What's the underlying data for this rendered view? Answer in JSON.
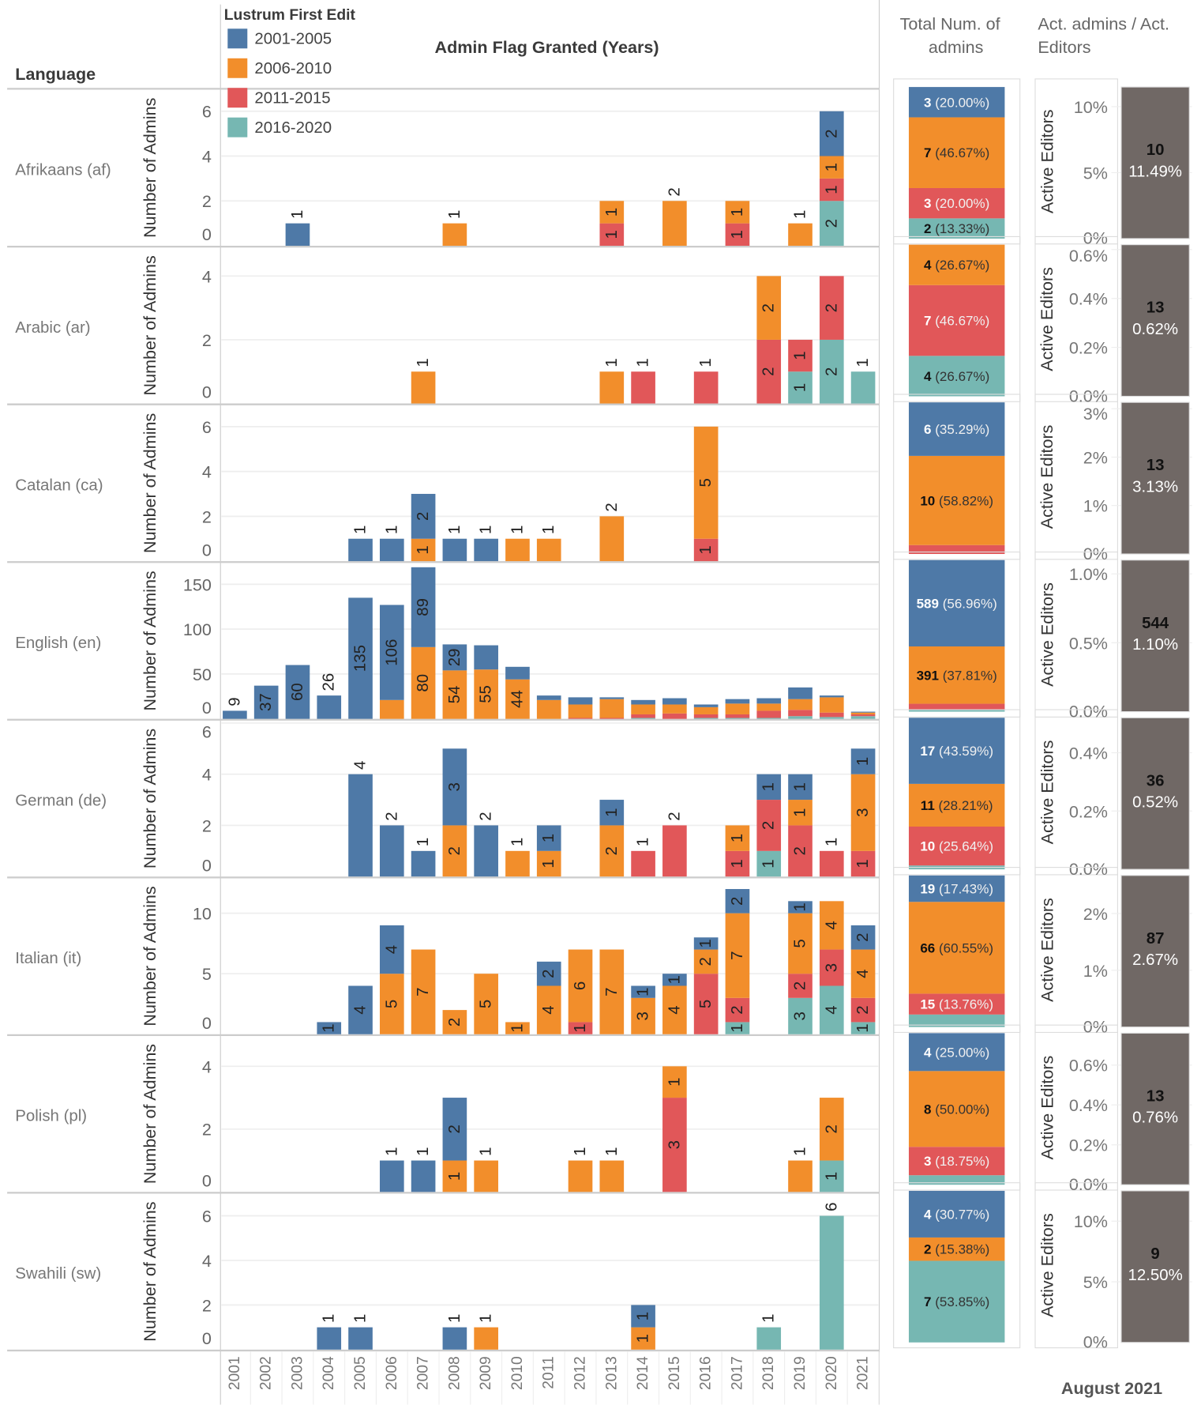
{
  "header": {
    "language_label": "Language",
    "legend_title": "Lustrum First Edit",
    "chart_title": "Admin Flag Granted (Years)",
    "total_title_1": "Total Num. of",
    "total_title_2": "admins",
    "ratio_title_1": "Act. admins / Act.",
    "ratio_title_2": "Editors",
    "footer": "August 2021"
  },
  "colors": {
    "blue": "#4e79a7",
    "orange": "#f28e2b",
    "red": "#e15759",
    "teal": "#76b7b2",
    "ratio_bar": "#706865"
  },
  "chart_data": {
    "type": "bar",
    "stacked": true,
    "title": "Admin Flag Granted (Years)",
    "ylabel": "Number of Admins",
    "ratio_axis_label": "Active Editors",
    "legend": {
      "title": "Lustrum First Edit",
      "placement": "top-left",
      "entries": [
        "2001-2005",
        "2006-2010",
        "2011-2015",
        "2016-2020"
      ]
    },
    "categories": [
      "2001",
      "2002",
      "2003",
      "2004",
      "2005",
      "2006",
      "2007",
      "2008",
      "2009",
      "2010",
      "2011",
      "2012",
      "2013",
      "2014",
      "2015",
      "2016",
      "2017",
      "2018",
      "2019",
      "2020",
      "2021"
    ],
    "series_order": "values per year are [2001-2005, 2006-2010, 2011-2015, 2016-2020]",
    "panels": [
      {
        "language": "Afrikaans (af)",
        "ylim": [
          0,
          6.96
        ],
        "yticks": [
          0,
          2,
          4,
          6
        ],
        "single_label": "above",
        "bars": {
          "2003": [
            1,
            0,
            0,
            0
          ],
          "2008": [
            0,
            1,
            0,
            0
          ],
          "2013": [
            0,
            1,
            1,
            0
          ],
          "2015": [
            0,
            2,
            0,
            0
          ],
          "2017": [
            0,
            1,
            1,
            0
          ],
          "2019": [
            0,
            1,
            0,
            0
          ],
          "2020": [
            2,
            1,
            1,
            2
          ]
        },
        "totals": {
          "counts": [
            3,
            7,
            3,
            2
          ],
          "labels": [
            "(20.00%)",
            "(46.67%)",
            "(20.00%)",
            "(13.33%)"
          ]
        },
        "ratio": {
          "admins": "10",
          "pct_label": "11.49%",
          "pct": 11.49,
          "ticks": [
            [
              0,
              "0%"
            ],
            [
              5,
              "5%"
            ],
            [
              10,
              "10%"
            ]
          ]
        }
      },
      {
        "language": "Arabic (ar)",
        "ylim": [
          0,
          4.9
        ],
        "yticks": [
          0,
          2,
          4
        ],
        "single_label": "above",
        "bars": {
          "2007": [
            0,
            1,
            0,
            0
          ],
          "2013": [
            0,
            1,
            0,
            0
          ],
          "2014": [
            0,
            0,
            1,
            0
          ],
          "2016": [
            0,
            0,
            1,
            0
          ],
          "2018": [
            0,
            2,
            2,
            0
          ],
          "2019": [
            0,
            0,
            1,
            1
          ],
          "2020": [
            0,
            0,
            2,
            2
          ],
          "2021": [
            0,
            0,
            0,
            1
          ]
        },
        "totals": {
          "counts": [
            0,
            4,
            7,
            4
          ],
          "labels": [
            null,
            "(26.67%)",
            "(46.67%)",
            "(26.67%)"
          ]
        },
        "ratio": {
          "admins": "13",
          "pct_label": "0.62%",
          "pct": 0.62,
          "ticks": [
            [
              0,
              "0.0%"
            ],
            [
              0.2,
              "0.2%"
            ],
            [
              0.4,
              "0.4%"
            ],
            [
              0.6,
              "0.6%"
            ]
          ]
        }
      },
      {
        "language": "Catalan (ca)",
        "ylim": [
          0,
          6.96
        ],
        "yticks": [
          0,
          2,
          4,
          6
        ],
        "single_label": "above",
        "bars": {
          "2005": [
            1,
            0,
            0,
            0
          ],
          "2006": [
            1,
            0,
            0,
            0
          ],
          "2007": [
            2,
            1,
            0,
            0
          ],
          "2008": [
            1,
            0,
            0,
            0
          ],
          "2009": [
            1,
            0,
            0,
            0
          ],
          "2010": [
            0,
            1,
            0,
            0
          ],
          "2011": [
            0,
            1,
            0,
            0
          ],
          "2013": [
            0,
            2,
            0,
            0
          ],
          "2016": [
            0,
            5,
            1,
            0
          ]
        },
        "totals": {
          "counts": [
            6,
            10,
            1,
            0
          ],
          "labels": [
            "(35.29%)",
            "(58.82%)",
            null,
            null
          ]
        },
        "ratio": {
          "admins": "13",
          "pct_label": "3.13%",
          "pct": 3.13,
          "ticks": [
            [
              0,
              "0%"
            ],
            [
              1,
              "1%"
            ],
            [
              2,
              "2%"
            ],
            [
              3,
              "3%"
            ]
          ]
        }
      },
      {
        "language": "English (en)",
        "ylim": [
          0,
          174
        ],
        "yticks": [
          0,
          50,
          100,
          150
        ],
        "single_label": "auto",
        "labels_until": 2010,
        "hidden_labels": [
          [
            2006,
            1
          ],
          [
            2009,
            0
          ],
          [
            2010,
            0
          ]
        ],
        "bars": {
          "2001": [
            9,
            0,
            0,
            0
          ],
          "2002": [
            37,
            0,
            0,
            0
          ],
          "2003": [
            60,
            0,
            0,
            0
          ],
          "2004": [
            26,
            0,
            0,
            0
          ],
          "2005": [
            135,
            0,
            0,
            0
          ],
          "2006": [
            106,
            21,
            0,
            0
          ],
          "2007": [
            89,
            80,
            0,
            0
          ],
          "2008": [
            29,
            54,
            0,
            0
          ],
          "2009": [
            27,
            55,
            0,
            0
          ],
          "2010": [
            14,
            44,
            0,
            0
          ],
          "2011": [
            5,
            21,
            0,
            0
          ],
          "2012": [
            8,
            15,
            1,
            0
          ],
          "2013": [
            2,
            21,
            1,
            0
          ],
          "2014": [
            5,
            11,
            4,
            1
          ],
          "2015": [
            7,
            10,
            6,
            0
          ],
          "2016": [
            3,
            8,
            4,
            1
          ],
          "2017": [
            5,
            12,
            4,
            1
          ],
          "2018": [
            6,
            8,
            8,
            1
          ],
          "2019": [
            13,
            12,
            7,
            3
          ],
          "2020": [
            2,
            17,
            5,
            2
          ],
          "2021": [
            1,
            2,
            2,
            3
          ]
        },
        "totals": {
          "counts": [
            589,
            391,
            42,
            12
          ],
          "labels": [
            "(56.96%)",
            "(37.81%)",
            null,
            null
          ]
        },
        "ratio": {
          "admins": "544",
          "pct_label": "1.10%",
          "pct": 1.1,
          "ticks": [
            [
              0,
              "0.0%"
            ],
            [
              0.5,
              "0.5%"
            ],
            [
              1.0,
              "1.0%"
            ]
          ]
        }
      },
      {
        "language": "German (de)",
        "ylim": [
          0,
          6.1
        ],
        "yticks": [
          0,
          2,
          4,
          6
        ],
        "single_label": "above",
        "bars": {
          "2005": [
            4,
            0,
            0,
            0
          ],
          "2006": [
            2,
            0,
            0,
            0
          ],
          "2007": [
            1,
            0,
            0,
            0
          ],
          "2008": [
            3,
            2,
            0,
            0
          ],
          "2009": [
            2,
            0,
            0,
            0
          ],
          "2010": [
            0,
            1,
            0,
            0
          ],
          "2011": [
            1,
            1,
            0,
            0
          ],
          "2013": [
            1,
            2,
            0,
            0
          ],
          "2014": [
            0,
            0,
            1,
            0
          ],
          "2015": [
            0,
            0,
            2,
            0
          ],
          "2017": [
            0,
            1,
            1,
            0
          ],
          "2018": [
            1,
            0,
            2,
            1
          ],
          "2019": [
            1,
            1,
            2,
            0
          ],
          "2020": [
            0,
            0,
            1,
            0
          ],
          "2021": [
            1,
            3,
            1,
            0
          ]
        },
        "totals": {
          "counts": [
            17,
            11,
            10,
            1
          ],
          "labels": [
            "(43.59%)",
            "(28.21%)",
            "(25.64%)",
            null
          ]
        },
        "ratio": {
          "admins": "36",
          "pct_label": "0.52%",
          "pct": 0.52,
          "ticks": [
            [
              0,
              "0.0%"
            ],
            [
              0.2,
              "0.2%"
            ],
            [
              0.4,
              "0.4%"
            ]
          ]
        }
      },
      {
        "language": "Italian (it)",
        "ylim": [
          0,
          12.9
        ],
        "yticks": [
          0,
          5,
          10
        ],
        "single_label": "inside",
        "bars": {
          "2004": [
            1,
            0,
            0,
            0
          ],
          "2005": [
            4,
            0,
            0,
            0
          ],
          "2006": [
            4,
            5,
            0,
            0
          ],
          "2007": [
            0,
            7,
            0,
            0
          ],
          "2008": [
            0,
            2,
            0,
            0
          ],
          "2009": [
            0,
            5,
            0,
            0
          ],
          "2010": [
            0,
            1,
            0,
            0
          ],
          "2011": [
            2,
            4,
            0,
            0
          ],
          "2012": [
            0,
            6,
            1,
            0
          ],
          "2013": [
            0,
            7,
            0,
            0
          ],
          "2014": [
            1,
            3,
            0,
            0
          ],
          "2015": [
            1,
            4,
            0,
            0
          ],
          "2016": [
            1,
            2,
            5,
            0
          ],
          "2017": [
            2,
            7,
            2,
            1
          ],
          "2019": [
            1,
            5,
            2,
            3
          ],
          "2020": [
            0,
            4,
            3,
            4
          ],
          "2021": [
            2,
            4,
            2,
            1
          ]
        },
        "totals": {
          "counts": [
            19,
            66,
            15,
            9
          ],
          "labels": [
            "(17.43%)",
            "(60.55%)",
            "(13.76%)",
            null
          ]
        },
        "ratio": {
          "admins": "87",
          "pct_label": "2.67%",
          "pct": 2.67,
          "ticks": [
            [
              0,
              "0%"
            ],
            [
              1,
              "1%"
            ],
            [
              2,
              "2%"
            ]
          ]
        }
      },
      {
        "language": "Polish (pl)",
        "ylim": [
          0,
          4.97
        ],
        "yticks": [
          0,
          2,
          4
        ],
        "single_label": "above",
        "bars": {
          "2006": [
            1,
            0,
            0,
            0
          ],
          "2007": [
            1,
            0,
            0,
            0
          ],
          "2008": [
            2,
            1,
            0,
            0
          ],
          "2009": [
            0,
            1,
            0,
            0
          ],
          "2012": [
            0,
            1,
            0,
            0
          ],
          "2013": [
            0,
            1,
            0,
            0
          ],
          "2015": [
            0,
            1,
            3,
            0
          ],
          "2019": [
            0,
            1,
            0,
            0
          ],
          "2020": [
            0,
            2,
            0,
            1
          ]
        },
        "totals": {
          "counts": [
            4,
            8,
            3,
            1
          ],
          "labels": [
            "(25.00%)",
            "(50.00%)",
            "(18.75%)",
            null
          ]
        },
        "ratio": {
          "admins": "13",
          "pct_label": "0.76%",
          "pct": 0.76,
          "ticks": [
            [
              0,
              "0.0%"
            ],
            [
              0.2,
              "0.2%"
            ],
            [
              0.4,
              "0.4%"
            ],
            [
              0.6,
              "0.6%"
            ]
          ]
        }
      },
      {
        "language": "Swahili (sw)",
        "ylim": [
          0,
          7
        ],
        "yticks": [
          0,
          2,
          4,
          6
        ],
        "single_label": "above",
        "bars": {
          "2004": [
            1,
            0,
            0,
            0
          ],
          "2005": [
            1,
            0,
            0,
            0
          ],
          "2008": [
            1,
            0,
            0,
            0
          ],
          "2009": [
            0,
            1,
            0,
            0
          ],
          "2014": [
            1,
            1,
            0,
            0
          ],
          "2018": [
            0,
            0,
            0,
            1
          ],
          "2020": [
            0,
            0,
            0,
            6
          ]
        },
        "totals": {
          "counts": [
            4,
            2,
            0,
            7
          ],
          "labels": [
            "(30.77%)",
            "(15.38%)",
            null,
            "(53.85%)"
          ]
        },
        "ratio": {
          "admins": "9",
          "pct_label": "12.50%",
          "pct": 12.5,
          "ticks": [
            [
              0,
              "0%"
            ],
            [
              5,
              "5%"
            ],
            [
              10,
              "10%"
            ]
          ]
        }
      }
    ]
  }
}
